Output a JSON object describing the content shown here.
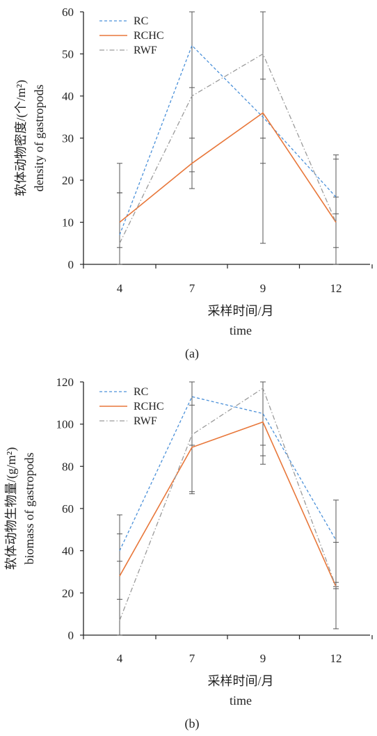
{
  "colors": {
    "RC": "#4a90d9",
    "RCHC": "#e8773a",
    "RWF": "#9a9a9a",
    "error_bar": "#555555",
    "axis": "#222222"
  },
  "chart_data": [
    {
      "type": "line",
      "panel": "(a)",
      "categories": [
        "4",
        "7",
        "9",
        "12"
      ],
      "ylim": [
        0,
        60
      ],
      "yticks": [
        0,
        10,
        20,
        30,
        40,
        50,
        60
      ],
      "xlabel_cn": "采样时间/月",
      "xlabel_en": "time",
      "ylabel_cn": "软体动物密度/(个/m²)",
      "ylabel_en": "density of gastropods",
      "legend_position": "top-left",
      "grid": false,
      "series": [
        {
          "name": "RC",
          "values": [
            7,
            52,
            35,
            16
          ],
          "err_low": [
            4,
            22,
            5,
            12
          ],
          "err_high": [
            24,
            70,
            44,
            26
          ],
          "style": "dashed"
        },
        {
          "name": "RCHC",
          "values": [
            10,
            24,
            36,
            10
          ],
          "err_low": [
            0,
            18,
            24,
            4
          ],
          "err_high": [
            17,
            30,
            60,
            25
          ],
          "style": "solid"
        },
        {
          "name": "RWF",
          "values": [
            5,
            40,
            50,
            10
          ],
          "err_low": [
            0,
            30,
            30,
            0
          ],
          "err_high": [
            17,
            42,
            60,
            16
          ],
          "style": "dashdot"
        }
      ]
    },
    {
      "type": "line",
      "panel": "(b)",
      "categories": [
        "4",
        "7",
        "9",
        "12"
      ],
      "ylim": [
        0,
        120
      ],
      "yticks": [
        0,
        20,
        40,
        60,
        80,
        100,
        120
      ],
      "xlabel_cn": "采样时间/月",
      "xlabel_en": "time",
      "ylabel_cn": "软体动物生物量/(g/m²)",
      "ylabel_en": "biomass of gastropods",
      "legend_position": "top-left",
      "grid": false,
      "series": [
        {
          "name": "RC",
          "values": [
            40,
            113,
            105,
            45
          ],
          "err_low": [
            35,
            90,
            85,
            25
          ],
          "err_high": [
            48,
            120,
            120,
            64
          ],
          "style": "dashed"
        },
        {
          "name": "RCHC",
          "values": [
            28,
            89,
            101,
            23
          ],
          "err_low": [
            0,
            67,
            81,
            3
          ],
          "err_high": [
            57,
            120,
            120,
            44
          ],
          "style": "solid"
        },
        {
          "name": "RWF",
          "values": [
            7,
            95,
            117,
            23
          ],
          "err_low": [
            0,
            68,
            90,
            22
          ],
          "err_high": [
            17,
            109,
            120,
            23
          ],
          "style": "dashdot"
        }
      ]
    }
  ]
}
